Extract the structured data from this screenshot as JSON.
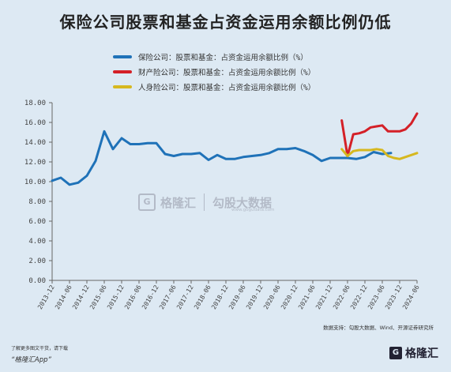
{
  "header": {
    "title": "保险公司股票和基金占资金运用余额比例仍低"
  },
  "colors": {
    "blue": "#1f72b8",
    "red": "#d42027",
    "yellow": "#d6b81f",
    "axis": "#555555"
  },
  "watermark": {
    "brand": "格隆汇",
    "brand2": "勾股大数据",
    "url": "www.gogudata.com"
  },
  "source": "数据支持：勾股大数据、Wind、开源证券研究所",
  "footer": {
    "sub": "了解更多图文干货，请下载",
    "app": "“格隆汇App”",
    "logo": "格隆汇"
  },
  "chart_data": {
    "type": "line",
    "title": "保险公司股票和基金占资金运用余额比例仍低",
    "xlabel": "",
    "ylabel": "",
    "ylim": [
      0,
      18
    ],
    "yticks": [
      "0.00",
      "2.00",
      "4.00",
      "6.00",
      "8.00",
      "10.00",
      "12.00",
      "14.00",
      "16.00",
      "18.00"
    ],
    "categories": [
      "2013-12",
      "2014-06",
      "2014-12",
      "2015-06",
      "2015-12",
      "2016-06",
      "2016-12",
      "2017-06",
      "2017-12",
      "2018-06",
      "2018-12",
      "2019-06",
      "2019-12",
      "2020-06",
      "2020-12",
      "2021-06",
      "2021-12",
      "2022-06",
      "2022-12",
      "2023-06",
      "2023-12",
      "2024-06"
    ],
    "grid": false,
    "legend_position": "top",
    "series": [
      {
        "name": "保险公司：股票和基金：占资金运用余额比例（%）",
        "color": "blue",
        "x": [
          0,
          0.5,
          1,
          1.5,
          2,
          2.5,
          3,
          3.5,
          4,
          4.5,
          5,
          5.5,
          6,
          6.5,
          7,
          7.5,
          8,
          8.5,
          9,
          9.5,
          10,
          10.5,
          11,
          11.5,
          12,
          12.5,
          13,
          13.5,
          14,
          14.5,
          15,
          15.5,
          16,
          16.5,
          17,
          17.5,
          18,
          18.5,
          19,
          19.5
        ],
        "values": [
          10.1,
          10.4,
          9.7,
          9.9,
          10.6,
          12.1,
          15.1,
          13.3,
          14.4,
          13.8,
          13.8,
          13.9,
          13.9,
          12.8,
          12.6,
          12.8,
          12.8,
          12.9,
          12.2,
          12.7,
          12.3,
          12.3,
          12.5,
          12.6,
          12.7,
          12.9,
          13.3,
          13.3,
          13.4,
          13.1,
          12.7,
          12.1,
          12.4,
          12.4,
          12.4,
          12.3,
          12.5,
          13.0,
          12.8,
          12.9
        ]
      },
      {
        "name": "财产险公司：股票和基金：占资金运用余额比例（%）",
        "color": "red",
        "x": [
          16.67,
          17,
          17.33,
          17.67,
          18,
          18.33,
          18.67,
          19,
          19.33,
          19.67,
          20,
          20.33,
          20.67,
          21
        ],
        "values": [
          16.2,
          12.6,
          14.8,
          14.9,
          15.1,
          15.5,
          15.6,
          15.7,
          15.1,
          15.1,
          15.1,
          15.3,
          15.9,
          16.9
        ]
      },
      {
        "name": "人身险公司：股票和基金：占资金运用余额比例（%）",
        "color": "yellow",
        "x": [
          16.67,
          17,
          17.33,
          17.67,
          18,
          18.33,
          18.67,
          19,
          19.33,
          19.67,
          20,
          20.33,
          20.67,
          21
        ],
        "values": [
          13.3,
          12.6,
          13.1,
          13.2,
          13.2,
          13.2,
          13.3,
          13.2,
          12.6,
          12.4,
          12.3,
          12.5,
          12.7,
          12.9
        ]
      }
    ]
  }
}
